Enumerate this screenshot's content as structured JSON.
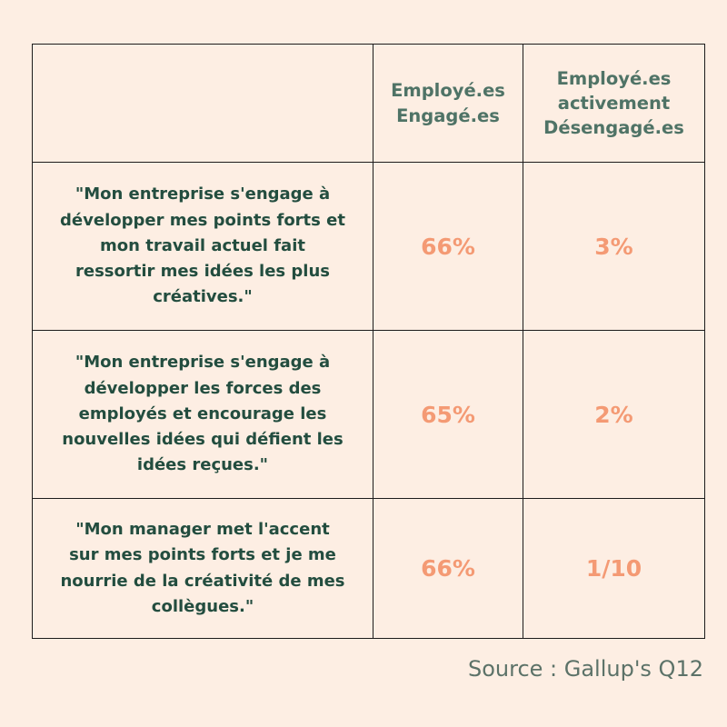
{
  "chart_data": {
    "type": "table",
    "columns": [
      "",
      "Employé.es\nEngagé.es",
      "Employé.es\nactivement\nDésengagé.es"
    ],
    "rows": [
      {
        "question": "\"Mon entreprise s'engage à\ndévelopper mes points forts et\nmon travail actuel fait\nressortir mes idées les plus\ncréatives.\"",
        "engaged": "66%",
        "disengaged": "3%"
      },
      {
        "question": "\"Mon entreprise s'engage à\ndévelopper les forces des\nemployés et encourage les\nnouvelles idées qui défient les\nidées reçues.\"",
        "engaged": "65%",
        "disengaged": "2%"
      },
      {
        "question": "\"Mon manager met l'accent\nsur mes points forts et je me\nnourrie de la créativité de mes\ncollègues.\"",
        "engaged": "66%",
        "disengaged": "1/10"
      }
    ]
  },
  "source": "Source : Gallup's Q12",
  "colors": {
    "background": "#fdeee3",
    "header_text": "#4f7366",
    "question_text": "#234d3f",
    "value_text": "#f49a74",
    "border": "#1c1c1c",
    "source_text": "#5c7268"
  }
}
